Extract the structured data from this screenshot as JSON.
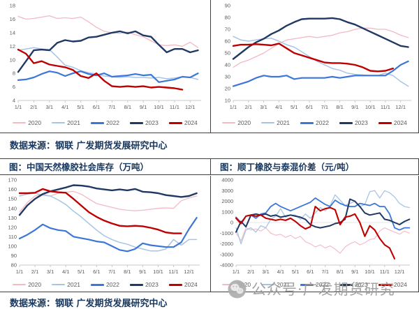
{
  "source_note_top": "数据来源：钢联 广发期货发展研究中心",
  "source_note_bottom": "数据来源：钢联 广发期货发展研究中心",
  "watermark_text": "公众号·广发期货研究",
  "colors": {
    "y2020": "#F3B9C3",
    "y2021": "#A7C4E6",
    "y2022": "#3B76D8",
    "y2023": "#1F3864",
    "y2024": "#C00000",
    "title_text": "#17375E",
    "axis_text": "#595959",
    "border": "#404040",
    "watermark": "#9C9C9C"
  },
  "x_tick_labels": [
    "1/1",
    "2/1",
    "3/1",
    "4/1",
    "5/1",
    "6/1",
    "7/1",
    "8/1",
    "9/1",
    "10/1",
    "11/1",
    "12/1"
  ],
  "legend_position": "bottom",
  "chart_data": [
    {
      "id": "top-left",
      "type": "line",
      "title": "",
      "xlabel": "",
      "ylabel": "",
      "ymin": 4,
      "ymax": 18,
      "yticks": [
        4,
        6,
        8,
        10,
        12,
        14,
        16,
        18
      ],
      "x_start": 1,
      "x_step": 0.5,
      "x_max": 12.7,
      "grid": false,
      "series": [
        {
          "name": "2020",
          "color": "#F3B9C3",
          "width": 1.3,
          "values": [
            16.4,
            16.0,
            16.1,
            16.3,
            16.5,
            16.1,
            16.2,
            16.1,
            16.3,
            15.6,
            14.8,
            14.2,
            14.0,
            13.9,
            14.1,
            13.7,
            13.4,
            12.8,
            12.2,
            12.1,
            12.2,
            12.0,
            12.6,
            11.8
          ]
        },
        {
          "name": "2021",
          "color": "#A7C4E6",
          "width": 1.5,
          "values": [
            11.4,
            11.6,
            11.8,
            11.6,
            11.5,
            10.4,
            9.2,
            8.9,
            8.4,
            8.1,
            7.9,
            7.6,
            7.5,
            7.4,
            7.5,
            7.4,
            7.4,
            7.3,
            7.4,
            7.2,
            7.3,
            7.5,
            7.4,
            7.1
          ]
        },
        {
          "name": "2022",
          "color": "#3B76D8",
          "width": 2.2,
          "values": [
            7.0,
            7.1,
            7.4,
            7.9,
            8.3,
            8.1,
            7.6,
            8.0,
            8.3,
            7.9,
            7.7,
            8.0,
            7.5,
            7.6,
            7.7,
            7.9,
            7.7,
            7.8,
            6.7,
            6.9,
            7.1,
            7.5,
            7.4,
            8.0
          ]
        },
        {
          "name": "2023",
          "color": "#1F3864",
          "width": 2.4,
          "values": [
            8.2,
            9.8,
            11.4,
            11.5,
            11.4,
            12.5,
            12.9,
            12.7,
            12.8,
            13.3,
            13.4,
            13.7,
            14.0,
            14.2,
            13.9,
            14.2,
            13.6,
            13.4,
            12.2,
            11.1,
            11.6,
            11.6,
            11.1,
            11.4
          ]
        },
        {
          "name": "2024",
          "color": "#C00000",
          "width": 2.4,
          "values": [
            11.5,
            10.9,
            9.5,
            9.8,
            9.3,
            9.1,
            8.9,
            8.5,
            7.6,
            7.3,
            8.0,
            6.9,
            6.1,
            6.0,
            6.1,
            6.0,
            6.1,
            5.9,
            6.0,
            5.9,
            5.8,
            5.6
          ]
        }
      ]
    },
    {
      "id": "top-right",
      "type": "line",
      "title": "",
      "xlabel": "",
      "ylabel": "",
      "ymin": 10,
      "ymax": 90,
      "yticks": [
        10,
        20,
        30,
        40,
        50,
        60,
        70,
        80,
        90
      ],
      "x_start": 1,
      "x_step": 0.5,
      "x_max": 12.7,
      "grid": false,
      "series": [
        {
          "name": "2020",
          "color": "#F3B9C3",
          "width": 1.3,
          "values": [
            38,
            42,
            44,
            47,
            50,
            54,
            58,
            61,
            62,
            63,
            64,
            63,
            64,
            65,
            67,
            68,
            70,
            71,
            71,
            70,
            70,
            68,
            65,
            63
          ]
        },
        {
          "name": "2021",
          "color": "#A7C4E6",
          "width": 1.5,
          "values": [
            64,
            61,
            60,
            61,
            62,
            62.5,
            60,
            57,
            55,
            51,
            47,
            43,
            40,
            37,
            35.5,
            33,
            32,
            31.5,
            31,
            31,
            33,
            31,
            26,
            22
          ]
        },
        {
          "name": "2022",
          "color": "#3B76D8",
          "width": 2.2,
          "values": [
            22,
            24,
            26,
            29,
            31,
            30,
            30,
            31,
            28,
            29,
            29,
            29,
            29,
            30,
            29,
            30,
            31,
            31,
            31,
            31,
            31,
            35,
            40,
            43
          ]
        },
        {
          "name": "2023",
          "color": "#1F3864",
          "width": 2.4,
          "values": [
            45,
            50,
            55,
            59,
            62,
            66,
            69,
            73,
            76,
            78.5,
            79,
            79,
            79,
            79.5,
            78.5,
            76,
            74,
            71,
            68,
            65,
            62,
            59,
            56,
            55
          ]
        },
        {
          "name": "2024",
          "color": "#C00000",
          "width": 2.4,
          "values": [
            56,
            57,
            57,
            57.5,
            57,
            56.5,
            58,
            54,
            50,
            48,
            46,
            44,
            42,
            41.5,
            41.5,
            41,
            40,
            38,
            35,
            34.5,
            35,
            37
          ]
        }
      ]
    },
    {
      "id": "bottom-left",
      "type": "line",
      "title": "图：中国天然橡胶社会库存（万吨）",
      "xlabel": "",
      "ylabel": "",
      "ymin": 80,
      "ymax": 170,
      "yticks": [
        80,
        90,
        100,
        110,
        120,
        130,
        140,
        150,
        160,
        170
      ],
      "x_start": 1,
      "x_step": 0.5,
      "x_max": 12.7,
      "grid": false,
      "series": [
        {
          "name": "2020",
          "color": "#F3B9C3",
          "width": 1.3,
          "values": [
            136,
            146,
            153,
            155,
            153,
            156,
            157,
            158,
            155,
            150,
            145,
            143,
            141,
            139,
            138,
            137.5,
            138,
            139,
            140,
            140.5,
            140,
            148,
            151,
            153
          ]
        },
        {
          "name": "2021",
          "color": "#A7C4E6",
          "width": 1.5,
          "values": [
            153,
            155,
            156,
            154,
            153,
            149,
            144,
            137,
            131,
            124,
            117,
            111,
            107,
            104,
            102,
            99,
            97,
            95,
            95,
            97,
            107,
            101,
            107,
            107
          ]
        },
        {
          "name": "2022",
          "color": "#3B76D8",
          "width": 2.2,
          "values": [
            108,
            112,
            117,
            123,
            119,
            117,
            116,
            110,
            108.5,
            107,
            105,
            104,
            100,
            96,
            94.5,
            97,
            103,
            101,
            100,
            99,
            99,
            104,
            118,
            130
          ]
        },
        {
          "name": "2023",
          "color": "#1F3864",
          "width": 2.4,
          "values": [
            133,
            143,
            150,
            155,
            158,
            160,
            162,
            164.5,
            164,
            163,
            161,
            160,
            159,
            160,
            159,
            160.5,
            157.5,
            157,
            156,
            154,
            153,
            152,
            153,
            156
          ]
        },
        {
          "name": "2024",
          "color": "#C00000",
          "width": 2.4,
          "values": [
            156,
            156,
            156.5,
            160.5,
            158,
            157,
            156.5,
            150,
            143,
            136,
            131,
            127,
            124,
            121.5,
            121,
            121.5,
            121,
            119.5,
            117.5,
            114.5,
            113.5,
            113.5
          ]
        }
      ]
    },
    {
      "id": "bottom-right",
      "type": "line",
      "title": "图：顺丁橡胶与泰混价差（元/吨）",
      "xlabel": "",
      "ylabel": "",
      "ymin": -4000,
      "ymax": 4000,
      "yticks": [
        -4000,
        -3000,
        -2000,
        -1000,
        0,
        1000,
        2000,
        3000,
        4000
      ],
      "x_start": 1,
      "x_step": 0.3333,
      "x_max": 12.7,
      "grid": false,
      "zero_line": true,
      "series": [
        {
          "name": "2020",
          "color": "#F3B9C3",
          "width": 1.1,
          "values": [
            -1000,
            -1700,
            -500,
            -700,
            -600,
            -800,
            -500,
            -1000,
            -1200,
            -1100,
            -1400,
            -1200,
            -1500,
            -1300,
            -1800,
            -2000,
            -2300,
            -2100,
            -2400,
            -2200,
            -2500,
            -2900,
            -2300,
            -2000,
            -1800,
            -2100,
            -1900,
            -1600,
            -1500,
            -800,
            -500,
            -700,
            -900,
            -1100,
            -800,
            -1000
          ]
        },
        {
          "name": "2021",
          "color": "#A7C4E6",
          "width": 1.3,
          "values": [
            -500,
            -2000,
            -700,
            -500,
            -900,
            -300,
            -500,
            300,
            600,
            1300,
            500,
            700,
            700,
            300,
            800,
            400,
            900,
            1400,
            1100,
            1600,
            2600,
            2100,
            1600,
            1800,
            2000,
            1500,
            1700,
            2900,
            3000,
            2300,
            3000,
            2800,
            2400,
            1800,
            1500,
            1400
          ]
        },
        {
          "name": "2022",
          "color": "#3B76D8",
          "width": 1.8,
          "values": [
            500,
            0,
            600,
            700,
            400,
            800,
            900,
            1500,
            1800,
            1500,
            1300,
            1100,
            1300,
            1500,
            1700,
            1900,
            2300,
            2000,
            1700,
            1500,
            2100,
            1800,
            1600,
            1500,
            1500,
            1800,
            1700,
            1600,
            1800,
            1500,
            1500,
            800,
            -500,
            -700,
            -500,
            -500
          ]
        },
        {
          "name": "2023",
          "color": "#1F3864",
          "width": 2.0,
          "values": [
            -900,
            100,
            -400,
            700,
            800,
            700,
            800,
            600,
            700,
            500,
            600,
            700,
            600,
            500,
            300,
            -200,
            -400,
            -500,
            -400,
            -300,
            -100,
            0,
            300,
            2200,
            2000,
            1500,
            900,
            700,
            800,
            900,
            300,
            200,
            0,
            -200,
            100,
            300
          ]
        },
        {
          "name": "2024",
          "color": "#C00000",
          "width": 2.1,
          "values": [
            400,
            -100,
            600,
            700,
            600,
            700,
            400,
            300,
            200,
            300,
            200,
            400,
            100,
            -300,
            -600,
            -400,
            1500,
            1100,
            1300,
            1400,
            1200,
            -200,
            500,
            600,
            800,
            0,
            -1300,
            -300,
            -700,
            -1500,
            -2100,
            -2400,
            -3400
          ]
        }
      ]
    }
  ]
}
